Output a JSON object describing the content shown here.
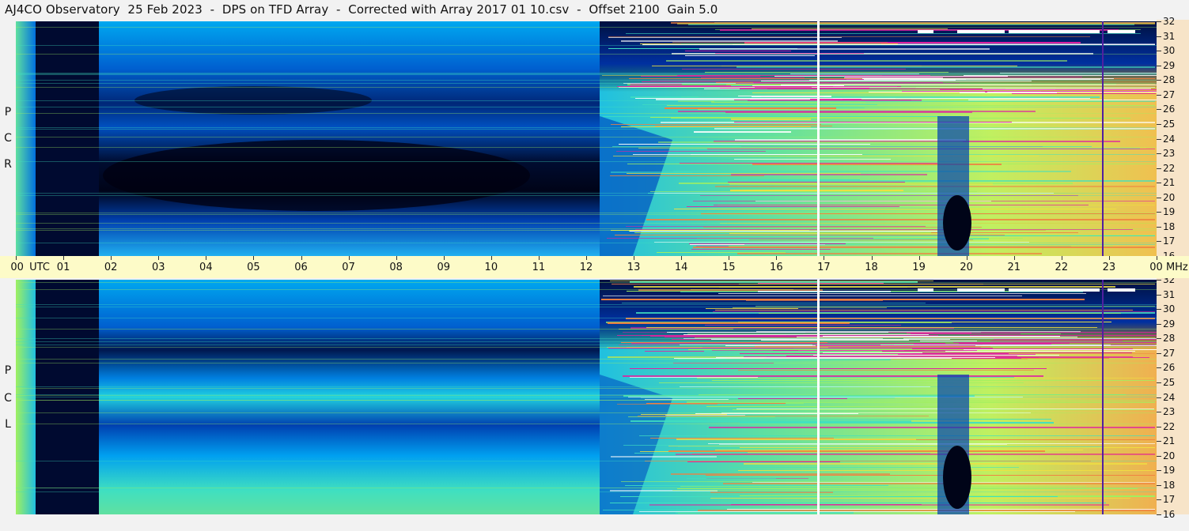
{
  "title": "AJ4CO Observatory  25 Feb 2023  -  DPS on TFD Array  -  Corrected with Array 2017 01 10.csv  -  Offset 2100  Gain 5.0",
  "panels": [
    {
      "id": "top",
      "polarization": [
        "R",
        "C",
        "P"
      ]
    },
    {
      "id": "bottom",
      "polarization": [
        "L",
        "C",
        "P"
      ]
    }
  ],
  "chart_data": {
    "type": "heatmap",
    "title": "AJ4CO Observatory  25 Feb 2023  -  DPS on TFD Array  -  Corrected with Array 2017 01 10.csv  -  Offset 2100  Gain 5.0",
    "x_ticks": [
      "00",
      "01",
      "02",
      "03",
      "04",
      "05",
      "06",
      "07",
      "08",
      "09",
      "10",
      "11",
      "12",
      "13",
      "14",
      "15",
      "16",
      "17",
      "18",
      "19",
      "20",
      "21",
      "22",
      "23",
      "00"
    ],
    "x_unit": "UTC",
    "xlim": [
      0,
      24
    ],
    "y_ticks": [
      32,
      31,
      30,
      29,
      28,
      27,
      26,
      25,
      24,
      23,
      22,
      21,
      20,
      19,
      18,
      17,
      16
    ],
    "y_unit": "MHz",
    "ylim": [
      16,
      32
    ],
    "colormap": [
      "#000a28",
      "#0030a0",
      "#0070e0",
      "#00c0f0",
      "#40e0c0",
      "#a0f060",
      "#f0e040",
      "#f08040",
      "#e020a0",
      "#ffffff"
    ],
    "series_vertical_markers_utc": [
      16.9,
      22.85
    ]
  }
}
